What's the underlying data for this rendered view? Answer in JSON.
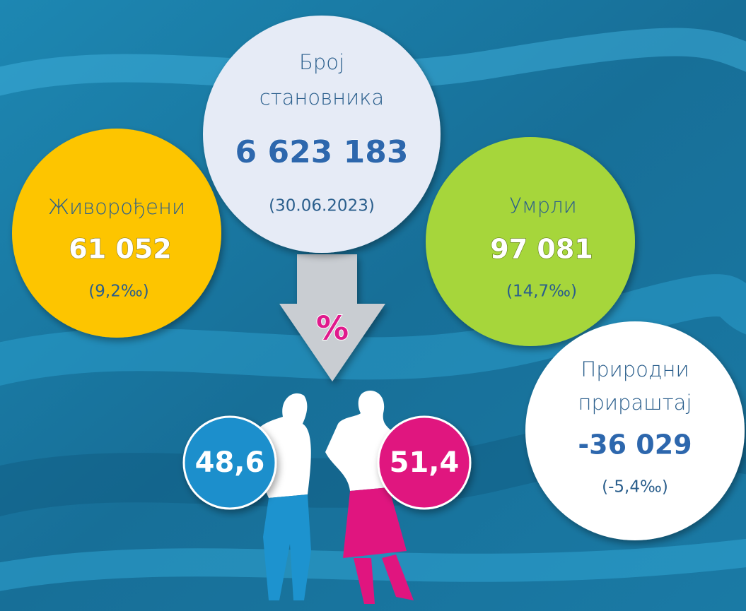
{
  "population": {
    "title_lines": [
      "Број",
      "становника"
    ],
    "value": "6 623 183",
    "date": "(30.06.2023)"
  },
  "births": {
    "label": "Живорођени",
    "value": "61 052",
    "rate": "(9,2‰)"
  },
  "deaths": {
    "label": "Умрли",
    "value": "97 081",
    "rate": "(14,7‰)"
  },
  "natural_increase": {
    "label_lines": [
      "Природни",
      "прираштај"
    ],
    "value": "-36 029",
    "rate": "(-5,4‰)"
  },
  "gender": {
    "symbol": "%",
    "male": "48,6",
    "female": "51,4"
  }
}
